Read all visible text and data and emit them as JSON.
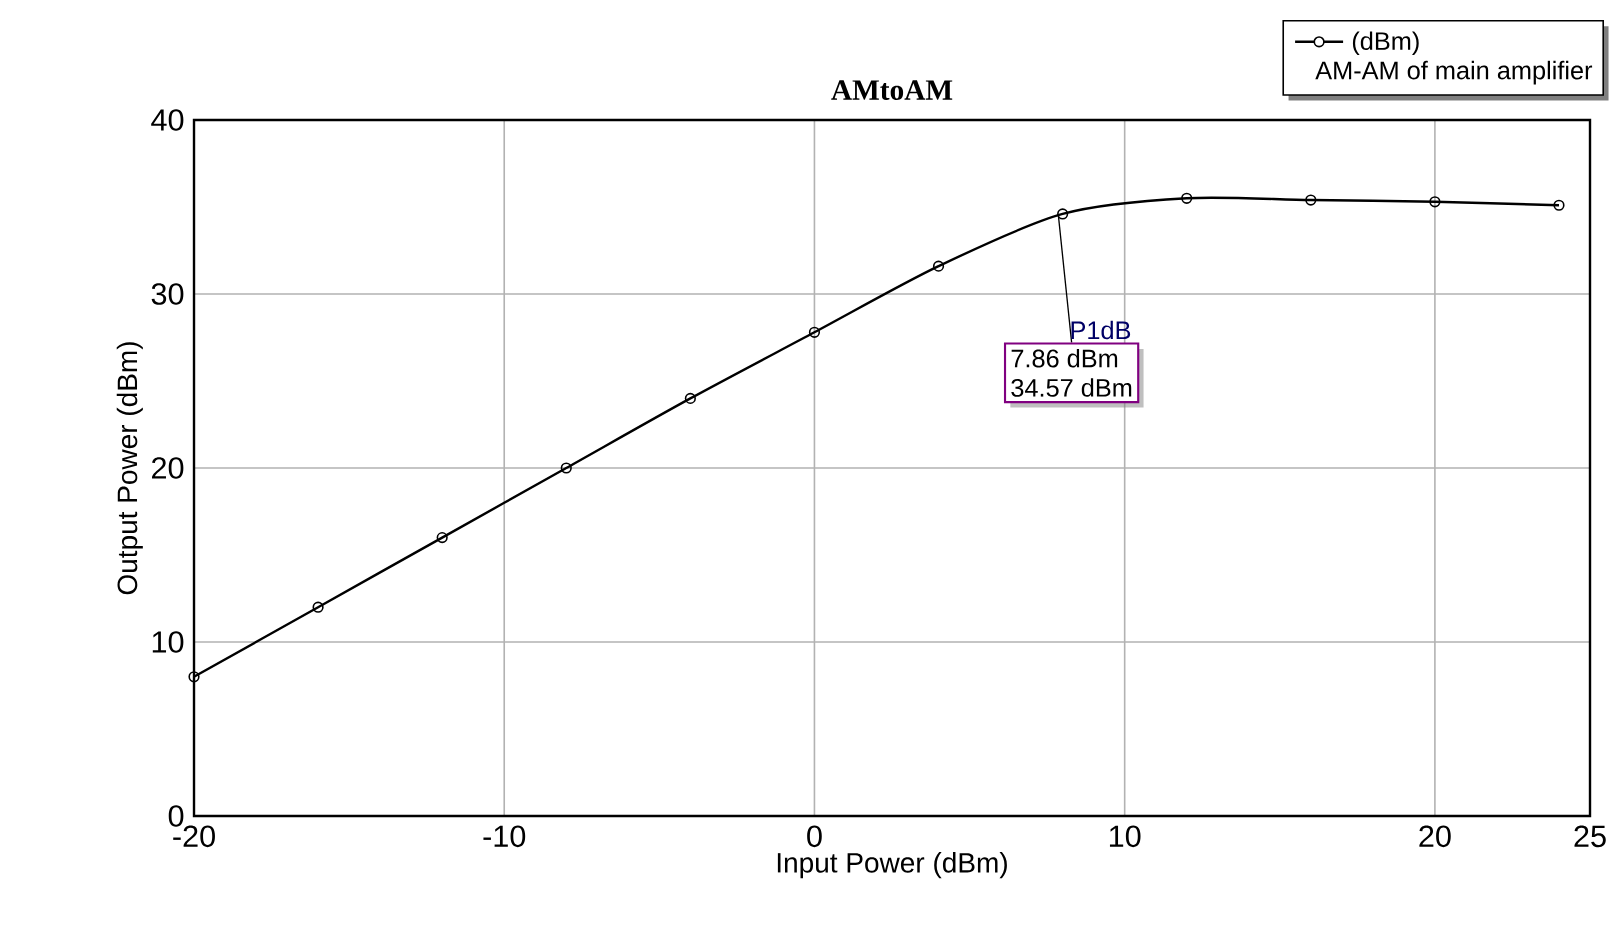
{
  "chart_data": {
    "type": "line",
    "title": "AMtoAM",
    "xlabel": "Input Power (dBm)",
    "ylabel": "Output Power (dBm)",
    "legend_title": "(dBm)",
    "x": [
      -20,
      -16,
      -12,
      -8,
      -4,
      0,
      4,
      8,
      12,
      16,
      20,
      24
    ],
    "series": [
      {
        "name": "AM-AM of main amplifier",
        "color": "#000000",
        "values": [
          8,
          12,
          16,
          20,
          24,
          27.8,
          31.6,
          34.6,
          35.5,
          35.4,
          35.3,
          35.1
        ]
      }
    ],
    "xlim": [
      -20,
      25
    ],
    "xticks": [
      -20,
      -10,
      0,
      10,
      20,
      25
    ],
    "ylim": [
      0,
      40
    ],
    "yticks": [
      0,
      10,
      20,
      30,
      40
    ],
    "grid": true,
    "legend": "top right",
    "marker": "circle",
    "line_style": "solid",
    "annotations": [
      {
        "text": "P1dB",
        "x": 7.86,
        "y": 34.57
      },
      "7.86 dBm",
      "34.57 dBm"
    ]
  }
}
